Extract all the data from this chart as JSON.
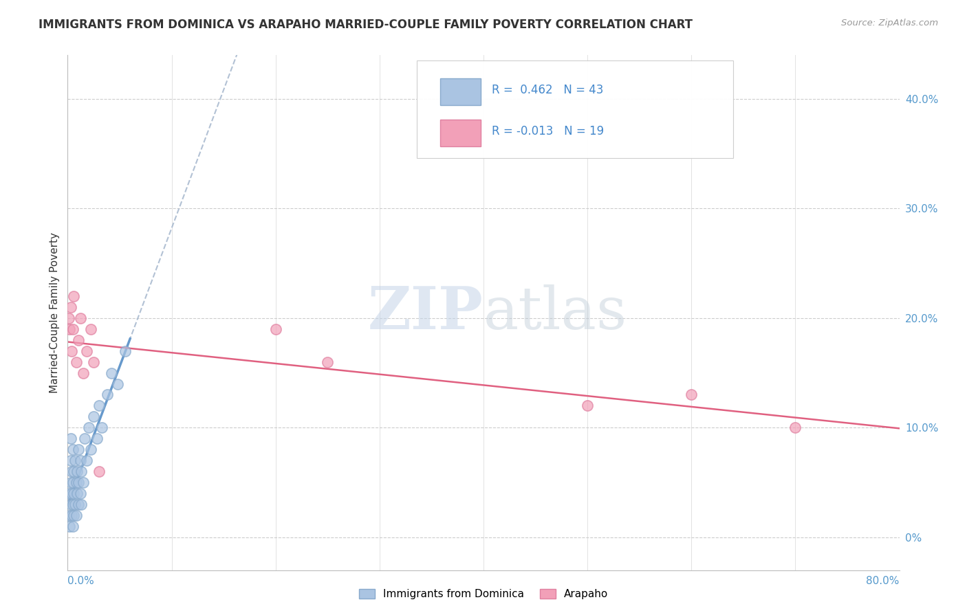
{
  "title": "IMMIGRANTS FROM DOMINICA VS ARAPAHO MARRIED-COUPLE FAMILY POVERTY CORRELATION CHART",
  "source": "Source: ZipAtlas.com",
  "ylabel": "Married-Couple Family Poverty",
  "ylabel_right_ticks": [
    "0%",
    "10.0%",
    "20.0%",
    "30.0%",
    "40.0%"
  ],
  "ylabel_right_vals": [
    0.0,
    0.1,
    0.2,
    0.3,
    0.4
  ],
  "xmin": 0.0,
  "xmax": 0.8,
  "ymin": -0.03,
  "ymax": 0.44,
  "r_blue": 0.462,
  "n_blue": 43,
  "r_pink": -0.013,
  "n_pink": 19,
  "watermark_zip": "ZIP",
  "watermark_atlas": "atlas",
  "blue_color": "#aac4e2",
  "pink_color": "#f2a0b8",
  "blue_edge": "#88aacc",
  "pink_edge": "#e080a0",
  "blue_line_color": "#6699cc",
  "blue_dashed_color": "#aabbd0",
  "pink_line_color": "#e06080",
  "blue_scatter_x": [
    0.001,
    0.001,
    0.002,
    0.003,
    0.003,
    0.003,
    0.003,
    0.004,
    0.004,
    0.004,
    0.005,
    0.005,
    0.005,
    0.005,
    0.006,
    0.006,
    0.006,
    0.007,
    0.007,
    0.008,
    0.008,
    0.009,
    0.009,
    0.01,
    0.01,
    0.01,
    0.012,
    0.012,
    0.013,
    0.013,
    0.015,
    0.016,
    0.018,
    0.02,
    0.022,
    0.025,
    0.028,
    0.03,
    0.033,
    0.038,
    0.042,
    0.048,
    0.055
  ],
  "blue_scatter_y": [
    0.02,
    0.04,
    0.01,
    0.03,
    0.05,
    0.07,
    0.09,
    0.02,
    0.04,
    0.06,
    0.01,
    0.03,
    0.05,
    0.08,
    0.02,
    0.04,
    0.06,
    0.03,
    0.07,
    0.02,
    0.05,
    0.04,
    0.06,
    0.03,
    0.05,
    0.08,
    0.04,
    0.07,
    0.03,
    0.06,
    0.05,
    0.09,
    0.07,
    0.1,
    0.08,
    0.11,
    0.09,
    0.12,
    0.1,
    0.13,
    0.15,
    0.14,
    0.17
  ],
  "pink_scatter_x": [
    0.001,
    0.002,
    0.003,
    0.004,
    0.005,
    0.006,
    0.008,
    0.01,
    0.012,
    0.015,
    0.018,
    0.022,
    0.025,
    0.03,
    0.2,
    0.25,
    0.5,
    0.6,
    0.7
  ],
  "pink_scatter_y": [
    0.2,
    0.19,
    0.21,
    0.17,
    0.19,
    0.22,
    0.16,
    0.18,
    0.2,
    0.15,
    0.17,
    0.19,
    0.16,
    0.06,
    0.19,
    0.16,
    0.12,
    0.13,
    0.1
  ]
}
